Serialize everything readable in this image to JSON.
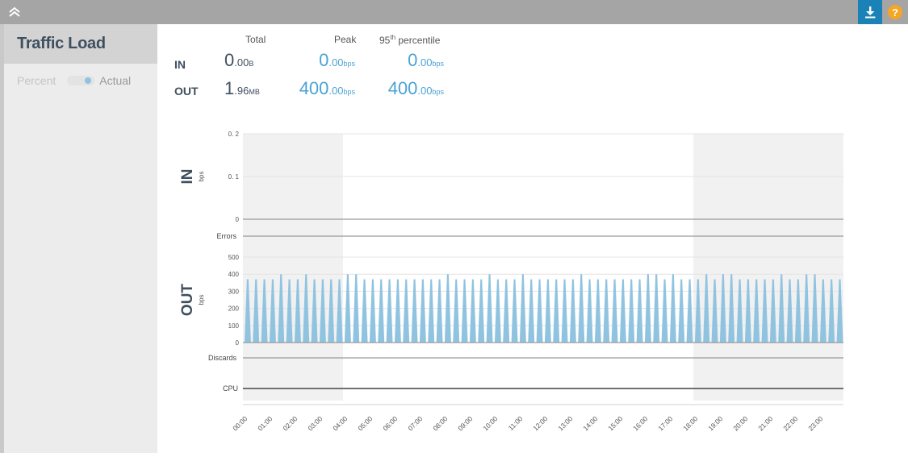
{
  "topbar": {
    "collapse_icon": "double-chevron-up-icon",
    "download_icon": "download-icon",
    "help_label": "?",
    "colors": {
      "bar": "#a5a5a5",
      "download_bg": "#1a82b6",
      "help_bg": "#f5a623"
    }
  },
  "sidebar": {
    "title": "Traffic Load",
    "toggle": {
      "off_label": "Percent",
      "on_label": "Actual",
      "selected": "Actual"
    }
  },
  "stats": {
    "headers": {
      "total": "Total",
      "peak": "Peak",
      "p95_base": "95",
      "p95_sup": "th",
      "p95_rest": " percentile"
    },
    "rows": [
      {
        "label": "IN",
        "total": {
          "int": "0",
          "dec": ".00",
          "unit": "B"
        },
        "peak": {
          "int": "0",
          "dec": ".00",
          "unit": "bps"
        },
        "p95": {
          "int": "0",
          "dec": ".00",
          "unit": "bps"
        }
      },
      {
        "label": "OUT",
        "total": {
          "int": "1",
          "dec": ".96",
          "unit": "MB"
        },
        "peak": {
          "int": "400",
          "dec": ".00",
          "unit": "bps"
        },
        "p95": {
          "int": "400",
          "dec": ".00",
          "unit": "bps"
        }
      }
    ]
  },
  "chart_data": {
    "type": "area",
    "title": "Traffic Load",
    "panels": [
      {
        "name": "IN",
        "unit": "bps",
        "yticks": [
          "0",
          "0.1",
          "0.2"
        ],
        "ylim": [
          0,
          0.2
        ],
        "values": "all 0"
      },
      {
        "name": "Errors",
        "type": "line",
        "values": "none"
      },
      {
        "name": "OUT",
        "unit": "bps",
        "yticks": [
          "0",
          "100",
          "200",
          "300",
          "400",
          "500"
        ],
        "ylim": [
          0,
          500
        ]
      },
      {
        "name": "Discards",
        "type": "line",
        "values": "none"
      },
      {
        "name": "CPU",
        "type": "line",
        "values": "none"
      }
    ],
    "xlabel": "",
    "xticks": [
      "00:00",
      "01:00",
      "02:00",
      "03:00",
      "04:00",
      "05:00",
      "06:00",
      "07:00",
      "08:00",
      "09:00",
      "10:00",
      "11:00",
      "12:00",
      "13:00",
      "14:00",
      "15:00",
      "16:00",
      "17:00",
      "18:00",
      "19:00",
      "20:00",
      "21:00",
      "22:00",
      "23:00"
    ],
    "shaded_ranges": [
      [
        "00:00",
        "04:00"
      ],
      [
        "18:00",
        "24:00"
      ]
    ],
    "out_series": {
      "name": "OUT",
      "color": "#8fc3e0",
      "interval_minutes": 20,
      "values": [
        370,
        370,
        370,
        370,
        400,
        370,
        370,
        400,
        370,
        370,
        370,
        370,
        400,
        400,
        370,
        370,
        370,
        370,
        370,
        370,
        370,
        370,
        370,
        370,
        400,
        370,
        370,
        370,
        370,
        400,
        370,
        370,
        370,
        400,
        370,
        370,
        370,
        370,
        370,
        370,
        400,
        370,
        370,
        370,
        370,
        370,
        370,
        370,
        400,
        400,
        370,
        400,
        370,
        370,
        370,
        400,
        370,
        400,
        400,
        370,
        370,
        370,
        370,
        370,
        400,
        370,
        370,
        400,
        400,
        370,
        370,
        370
      ]
    }
  }
}
